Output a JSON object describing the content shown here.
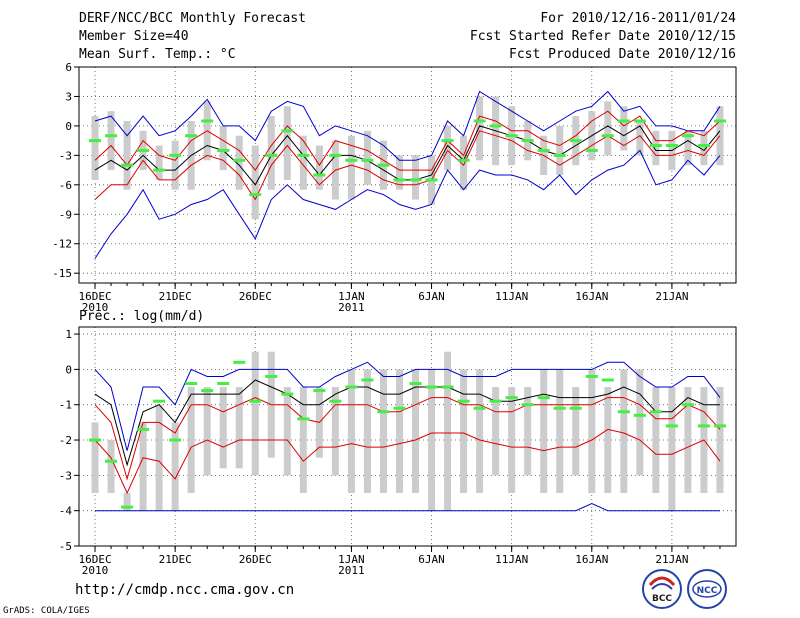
{
  "header": {
    "title": "DERF/NCC/BCC Monthly Forecast",
    "member_size": "Member Size=40",
    "variable1": "Mean Surf. Temp.: °C",
    "period": "For 2010/12/16-2011/01/24",
    "started": "Fcst Started Refer Date 2010/12/15",
    "produced": "Fcst Produced Date 2010/12/16"
  },
  "footer": {
    "url": "http://cmdp.ncc.cma.gov.cn",
    "credit": "GrADS: COLA/IGES"
  },
  "logos": {
    "left": "BCC",
    "right": "NCC"
  },
  "colors": {
    "blue": "#0000cc",
    "red": "#dd0000",
    "black": "#000000",
    "green": "#44ee44",
    "box": "#cccccc"
  },
  "chart_data": [
    {
      "type": "box",
      "title": "Mean Surf. Temp.: °C",
      "ylim": [
        -16,
        6
      ],
      "yticks": [
        6,
        3,
        0,
        -3,
        -6,
        -9,
        -12,
        -15
      ],
      "xticks": [
        {
          "day": 1,
          "label": "16DEC",
          "label2": "2010"
        },
        {
          "day": 6,
          "label": "21DEC"
        },
        {
          "day": 11,
          "label": "26DEC"
        },
        {
          "day": 17,
          "label": "1JAN",
          "label2": "2011"
        },
        {
          "day": 22,
          "label": "6JAN"
        },
        {
          "day": 27,
          "label": "11JAN"
        },
        {
          "day": 32,
          "label": "16JAN"
        },
        {
          "day": 37,
          "label": "21JAN"
        }
      ],
      "box_low": [
        -5.5,
        -4.5,
        -6.5,
        -4.5,
        -5.5,
        -6.5,
        -6.5,
        -3.5,
        -4.5,
        -6.5,
        -9.5,
        -6.5,
        -5.5,
        -6.5,
        -6.5,
        -7.5,
        -7.5,
        -6.0,
        -6.5,
        -6.5,
        -7.5,
        -8.0,
        -4.5,
        -6.5,
        -3.5,
        -4.0,
        -4.0,
        -3.5,
        -5.0,
        -5.0,
        -4.0,
        -3.5,
        -3.0,
        -2.5,
        -3.0,
        -4.0,
        -4.5,
        -4.0,
        -4.0,
        -4.0
      ],
      "box_high": [
        1.0,
        1.5,
        0.5,
        -0.5,
        -2.0,
        -1.5,
        0.5,
        2.5,
        0.0,
        -1.0,
        -2.0,
        1.0,
        2.0,
        -1.0,
        -2.0,
        -1.5,
        -1.0,
        -0.5,
        -1.5,
        -3.0,
        -3.0,
        -3.0,
        0.0,
        -1.0,
        3.0,
        3.0,
        2.0,
        0.5,
        -1.0,
        0.0,
        1.0,
        1.5,
        2.5,
        2.0,
        0.5,
        -0.5,
        -0.5,
        -0.5,
        -0.5,
        2.0
      ],
      "series": [
        {
          "name": "max",
          "color": "blue",
          "values": [
            0.5,
            1.0,
            -1.0,
            1.0,
            -1.0,
            -0.5,
            1.0,
            2.7,
            0.0,
            0.0,
            -1.5,
            1.5,
            2.5,
            2.0,
            -1.0,
            0.0,
            -0.5,
            -1.0,
            -2.0,
            -3.5,
            -3.5,
            -3.0,
            0.5,
            -1.0,
            3.5,
            2.5,
            1.5,
            0.5,
            -0.5,
            0.5,
            1.5,
            2.0,
            3.5,
            1.5,
            2.0,
            0.0,
            0.0,
            -0.5,
            -0.5,
            2.0
          ]
        },
        {
          "name": "upper",
          "color": "red",
          "values": [
            -3.5,
            -2.0,
            -4.0,
            -1.5,
            -3.0,
            -3.5,
            -1.5,
            -0.5,
            -1.5,
            -2.5,
            -4.5,
            -2.0,
            0.0,
            -1.5,
            -4.0,
            -1.5,
            -2.0,
            -2.5,
            -3.5,
            -4.5,
            -4.5,
            -4.5,
            -1.5,
            -3.0,
            1.0,
            0.5,
            -0.5,
            -0.5,
            -1.5,
            -2.0,
            -1.0,
            0.5,
            1.5,
            0.0,
            1.0,
            -1.5,
            -1.5,
            -0.5,
            -1.0,
            0.5
          ]
        },
        {
          "name": "mean",
          "color": "black",
          "values": [
            -4.5,
            -3.5,
            -4.5,
            -3.0,
            -4.5,
            -4.5,
            -3.0,
            -2.0,
            -2.5,
            -4.0,
            -6.0,
            -3.0,
            -1.0,
            -3.0,
            -5.0,
            -3.0,
            -3.0,
            -3.5,
            -4.5,
            -5.5,
            -5.5,
            -5.0,
            -2.0,
            -3.5,
            0.0,
            -0.5,
            -1.0,
            -1.5,
            -2.5,
            -3.0,
            -2.0,
            -1.0,
            0.0,
            -1.0,
            0.0,
            -2.5,
            -2.5,
            -1.5,
            -2.5,
            -0.5
          ]
        },
        {
          "name": "lower",
          "color": "red",
          "values": [
            -7.5,
            -6.0,
            -6.0,
            -3.5,
            -5.5,
            -5.5,
            -4.0,
            -3.0,
            -3.5,
            -5.0,
            -7.5,
            -4.0,
            -2.0,
            -4.0,
            -6.0,
            -4.5,
            -4.0,
            -4.5,
            -5.5,
            -6.0,
            -6.0,
            -5.5,
            -2.5,
            -4.0,
            -0.5,
            -1.0,
            -1.5,
            -2.5,
            -3.0,
            -4.0,
            -3.0,
            -2.0,
            -1.0,
            -2.0,
            -1.0,
            -3.0,
            -3.0,
            -2.5,
            -3.0,
            -1.0
          ]
        },
        {
          "name": "min",
          "color": "blue",
          "values": [
            -13.5,
            -11.0,
            -9.0,
            -6.5,
            -9.5,
            -9.0,
            -8.0,
            -7.5,
            -6.5,
            -9.0,
            -11.5,
            -7.5,
            -6.0,
            -7.5,
            -8.0,
            -8.5,
            -7.5,
            -6.5,
            -7.0,
            -8.0,
            -8.5,
            -8.0,
            -4.5,
            -6.5,
            -4.5,
            -5.0,
            -5.0,
            -5.5,
            -6.5,
            -5.0,
            -7.0,
            -5.5,
            -4.5,
            -4.0,
            -2.5,
            -6.0,
            -5.5,
            -3.5,
            -5.0,
            -3.0
          ]
        },
        {
          "name": "marker",
          "color": "green",
          "values": [
            -1.5,
            -1.0,
            -4.0,
            -2.5,
            -4.5,
            -3.0,
            -1.0,
            0.5,
            -2.5,
            -3.5,
            -7.0,
            -3.0,
            -0.5,
            -3.0,
            -5.0,
            -3.0,
            -3.5,
            -3.5,
            -4.0,
            -5.5,
            -5.5,
            -5.5,
            -1.5,
            -3.5,
            0.5,
            0.0,
            -1.0,
            -1.5,
            -2.5,
            -3.0,
            -1.5,
            -2.5,
            -1.0,
            0.5,
            0.5,
            -2.0,
            -2.0,
            -1.0,
            -2.0,
            0.5
          ]
        }
      ]
    },
    {
      "type": "box",
      "title": "Prec.: log(mm/d)",
      "ylim": [
        -5,
        1.2
      ],
      "yticks": [
        1,
        0,
        -1,
        -2,
        -3,
        -4,
        -5
      ],
      "xticks": [
        {
          "day": 1,
          "label": "16DEC",
          "label2": "2010"
        },
        {
          "day": 6,
          "label": "21DEC"
        },
        {
          "day": 11,
          "label": "26DEC"
        },
        {
          "day": 17,
          "label": "1JAN",
          "label2": "2011"
        },
        {
          "day": 22,
          "label": "6JAN"
        },
        {
          "day": 27,
          "label": "11JAN"
        },
        {
          "day": 32,
          "label": "16JAN"
        },
        {
          "day": 37,
          "label": "21JAN"
        }
      ],
      "box_low": [
        -3.5,
        -3.5,
        -4.0,
        -4.0,
        -4.0,
        -4.0,
        -3.5,
        -3.0,
        -2.8,
        -2.8,
        -3.0,
        -2.5,
        -3.0,
        -3.5,
        -2.5,
        -3.0,
        -3.5,
        -3.5,
        -3.5,
        -3.5,
        -3.5,
        -4.0,
        -4.0,
        -3.5,
        -3.5,
        -3.0,
        -3.5,
        -3.0,
        -3.5,
        -3.5,
        -3.0,
        -3.5,
        -3.5,
        -3.5,
        -3.0,
        -3.5,
        -4.0,
        -3.5,
        -3.5,
        -3.5
      ],
      "box_high": [
        -1.5,
        -2.0,
        -3.5,
        -1.5,
        -1.0,
        -1.5,
        -0.5,
        -0.5,
        -0.5,
        -0.5,
        0.5,
        0.5,
        -0.5,
        -0.5,
        -0.5,
        -0.5,
        0.0,
        0.0,
        0.0,
        0.0,
        0.0,
        0.0,
        0.5,
        0.0,
        0.0,
        -0.5,
        -0.5,
        -0.5,
        0.0,
        0.0,
        -0.5,
        0.0,
        -0.5,
        0.0,
        0.0,
        -0.5,
        -0.5,
        -0.5,
        -0.5,
        -0.5
      ],
      "series": [
        {
          "name": "max",
          "color": "blue",
          "values": [
            0.0,
            -0.5,
            -2.3,
            -0.5,
            -0.5,
            -1.0,
            0.0,
            -0.2,
            -0.2,
            0.0,
            0.0,
            0.0,
            0.0,
            -0.5,
            -0.5,
            -0.2,
            0.0,
            0.2,
            -0.2,
            -0.2,
            0.0,
            0.0,
            0.0,
            -0.2,
            -0.2,
            -0.2,
            0.0,
            0.0,
            0.0,
            0.0,
            0.0,
            0.0,
            0.2,
            0.2,
            -0.2,
            -0.5,
            -0.5,
            -0.2,
            -0.2,
            -0.8
          ]
        },
        {
          "name": "upper",
          "color": "black",
          "values": [
            -0.7,
            -1.0,
            -2.7,
            -1.2,
            -1.0,
            -1.5,
            -0.7,
            -0.7,
            -0.7,
            -0.7,
            -0.3,
            -0.5,
            -0.7,
            -1.0,
            -1.0,
            -0.7,
            -0.5,
            -0.5,
            -0.7,
            -0.7,
            -0.5,
            -0.5,
            -0.5,
            -0.7,
            -0.7,
            -0.9,
            -0.9,
            -0.8,
            -0.7,
            -0.8,
            -0.8,
            -0.8,
            -0.7,
            -0.5,
            -0.7,
            -1.2,
            -1.2,
            -0.8,
            -1.0,
            -1.0
          ]
        },
        {
          "name": "mean",
          "color": "red",
          "values": [
            -1.0,
            -1.5,
            -3.1,
            -1.5,
            -1.5,
            -1.8,
            -1.0,
            -1.0,
            -1.2,
            -1.0,
            -0.8,
            -1.0,
            -1.0,
            -1.4,
            -1.5,
            -1.0,
            -1.0,
            -1.0,
            -1.2,
            -1.2,
            -1.0,
            -0.8,
            -0.8,
            -1.0,
            -1.0,
            -1.2,
            -1.2,
            -1.0,
            -1.0,
            -1.0,
            -1.0,
            -1.0,
            -0.8,
            -0.8,
            -1.0,
            -1.4,
            -1.4,
            -1.0,
            -1.2,
            -1.7
          ]
        },
        {
          "name": "lower",
          "color": "red",
          "values": [
            -2.0,
            -2.5,
            -3.5,
            -2.5,
            -2.6,
            -3.1,
            -2.2,
            -2.0,
            -2.2,
            -2.0,
            -2.0,
            -2.0,
            -2.0,
            -2.6,
            -2.2,
            -2.2,
            -2.1,
            -2.2,
            -2.2,
            -2.1,
            -2.0,
            -1.8,
            -1.8,
            -1.8,
            -2.0,
            -2.1,
            -2.2,
            -2.2,
            -2.3,
            -2.2,
            -2.2,
            -2.0,
            -1.7,
            -1.8,
            -2.0,
            -2.4,
            -2.4,
            -2.2,
            -2.0,
            -2.6
          ]
        },
        {
          "name": "min",
          "color": "blue",
          "values": [
            -4.0,
            -4.0,
            -4.0,
            -4.0,
            -4.0,
            -4.0,
            -4.0,
            -4.0,
            -4.0,
            -4.0,
            -4.0,
            -4.0,
            -4.0,
            -4.0,
            -4.0,
            -4.0,
            -4.0,
            -4.0,
            -4.0,
            -4.0,
            -4.0,
            -4.0,
            -4.0,
            -4.0,
            -4.0,
            -4.0,
            -4.0,
            -4.0,
            -4.0,
            -4.0,
            -4.0,
            -3.8,
            -4.0,
            -4.0,
            -4.0,
            -4.0,
            -4.0,
            -4.0,
            -4.0,
            -4.0
          ]
        },
        {
          "name": "marker",
          "color": "green",
          "values": [
            -2.0,
            -2.6,
            -3.9,
            -1.7,
            -0.9,
            -2.0,
            -0.4,
            -0.6,
            -0.4,
            0.2,
            -0.9,
            -0.2,
            -0.7,
            -1.4,
            -0.6,
            -0.9,
            -0.5,
            -0.3,
            -1.2,
            -1.1,
            -0.4,
            -0.5,
            -0.5,
            -0.9,
            -1.1,
            -0.9,
            -0.8,
            -1.0,
            -0.8,
            -1.1,
            -1.1,
            -0.2,
            -0.3,
            -1.2,
            -1.3,
            -1.2,
            -1.6,
            -1.0,
            -1.6,
            -1.6
          ]
        }
      ]
    }
  ]
}
